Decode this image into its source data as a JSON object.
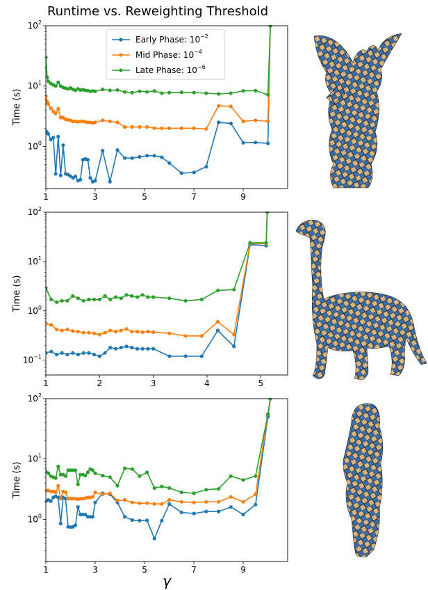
{
  "figure": {
    "title": "Runtime vs. Reweighting Threshold",
    "xlabel": "γ"
  },
  "colors": {
    "early": "#1f77b4",
    "mid": "#ff7f0e",
    "late": "#2ca02c",
    "mesh_light": "#d4b483",
    "mesh_dark": "#3b6ea8"
  },
  "legend": {
    "placement": "upper-center, top panel",
    "entries": [
      {
        "label": "Early Phase: 10",
        "exp": "−2",
        "color_key": "early"
      },
      {
        "label": "Mid Phase: 10",
        "exp": "−4",
        "color_key": "mid"
      },
      {
        "label": "Late Phase: 10",
        "exp": "−6",
        "color_key": "late"
      }
    ]
  },
  "chart_data": [
    {
      "type": "line",
      "ylabel": "Time (s)",
      "yscale": "log",
      "ylim": [
        0.2,
        100
      ],
      "yticks": [
        1,
        10,
        100
      ],
      "xlim": [
        1,
        10.8
      ],
      "xticks": [
        1,
        3,
        5,
        7,
        9
      ],
      "xtick_labels": [
        "1",
        "3",
        "5",
        "7",
        "9"
      ],
      "mesh": "angel statue",
      "series": [
        {
          "name": "Early Phase",
          "color_key": "early",
          "x": [
            1.0,
            1.05,
            1.1,
            1.2,
            1.3,
            1.4,
            1.5,
            1.6,
            1.7,
            1.8,
            1.9,
            2.0,
            2.1,
            2.2,
            2.3,
            2.4,
            2.5,
            2.6,
            2.7,
            2.8,
            2.9,
            3.0,
            3.3,
            3.6,
            3.9,
            4.2,
            4.5,
            4.8,
            5.1,
            5.4,
            5.7,
            6.0,
            6.5,
            7.0,
            7.5,
            8.0,
            8.5,
            9.0,
            9.5,
            10.0,
            10.1
          ],
          "y": [
            1.8,
            1.7,
            1.6,
            1.3,
            1.4,
            0.35,
            1.45,
            0.33,
            1.05,
            0.35,
            0.34,
            0.32,
            0.3,
            0.32,
            0.27,
            0.28,
            0.6,
            0.62,
            0.6,
            0.3,
            0.26,
            0.27,
            0.85,
            0.26,
            0.87,
            0.64,
            0.64,
            0.67,
            0.7,
            0.7,
            0.66,
            0.53,
            0.36,
            0.37,
            0.46,
            2.5,
            2.4,
            1.15,
            1.16,
            1.12,
            100
          ]
        },
        {
          "name": "Mid Phase",
          "color_key": "mid",
          "x": [
            1.0,
            1.05,
            1.1,
            1.2,
            1.3,
            1.4,
            1.5,
            1.6,
            1.7,
            1.8,
            1.9,
            2.0,
            2.1,
            2.2,
            2.3,
            2.4,
            2.5,
            2.6,
            2.7,
            2.8,
            2.9,
            3.0,
            3.3,
            3.6,
            3.9,
            4.2,
            4.5,
            4.8,
            5.1,
            5.4,
            5.7,
            6.0,
            6.5,
            7.0,
            7.5,
            8.0,
            8.5,
            9.0,
            9.5,
            10.0,
            10.1
          ],
          "y": [
            6.8,
            5.5,
            5.0,
            4.3,
            3.8,
            3.5,
            4.2,
            3.0,
            3.0,
            2.8,
            2.75,
            2.7,
            2.6,
            2.6,
            2.55,
            2.6,
            2.6,
            2.55,
            2.5,
            2.5,
            2.45,
            2.5,
            2.7,
            2.6,
            2.5,
            2.1,
            2.1,
            2.1,
            2.1,
            2.0,
            2.0,
            2.0,
            2.0,
            2.0,
            1.95,
            4.7,
            4.6,
            2.6,
            2.7,
            2.6,
            100
          ]
        },
        {
          "name": "Late Phase",
          "color_key": "late",
          "x": [
            1.0,
            1.05,
            1.1,
            1.2,
            1.3,
            1.4,
            1.5,
            1.6,
            1.7,
            1.8,
            1.9,
            2.0,
            2.1,
            2.2,
            2.3,
            2.4,
            2.5,
            2.6,
            2.7,
            2.8,
            2.9,
            3.0,
            3.3,
            3.6,
            3.9,
            4.2,
            4.5,
            4.8,
            5.1,
            5.4,
            5.7,
            6.0,
            6.5,
            7.0,
            7.5,
            8.0,
            8.5,
            9.0,
            9.5,
            10.0,
            10.1
          ],
          "y": [
            30,
            14,
            12,
            11,
            10.5,
            10,
            11.5,
            10,
            9.5,
            9.2,
            9.0,
            9.3,
            8.8,
            8.5,
            9.0,
            8.6,
            8.7,
            8.5,
            8.4,
            8.2,
            8.3,
            8.2,
            8.8,
            8.5,
            8.6,
            8.0,
            7.8,
            8.2,
            8.0,
            8.3,
            7.6,
            7.8,
            7.9,
            7.8,
            7.6,
            7.4,
            7.6,
            8.3,
            8.4,
            7.2,
            100
          ]
        }
      ]
    },
    {
      "type": "line",
      "ylabel": "Time (s)",
      "yscale": "log",
      "ylim": [
        0.05,
        100
      ],
      "yticks": [
        0.1,
        1,
        10,
        100
      ],
      "xlim": [
        1,
        5.5
      ],
      "xticks": [
        1,
        2,
        3,
        4,
        5
      ],
      "xtick_labels": [
        "1",
        "2",
        "3",
        "4",
        "5"
      ],
      "mesh": "dinosaur",
      "series": [
        {
          "name": "Early Phase",
          "color_key": "early",
          "x": [
            1.0,
            1.1,
            1.2,
            1.3,
            1.4,
            1.5,
            1.6,
            1.7,
            1.8,
            1.9,
            2.0,
            2.1,
            2.2,
            2.3,
            2.4,
            2.5,
            2.6,
            2.7,
            2.8,
            2.9,
            3.0,
            3.3,
            3.6,
            3.9,
            4.2,
            4.5,
            4.8,
            5.1,
            5.12
          ],
          "y": [
            0.14,
            0.15,
            0.13,
            0.14,
            0.13,
            0.14,
            0.13,
            0.14,
            0.14,
            0.13,
            0.12,
            0.14,
            0.18,
            0.17,
            0.18,
            0.19,
            0.18,
            0.17,
            0.17,
            0.17,
            0.17,
            0.12,
            0.12,
            0.12,
            0.4,
            0.19,
            22,
            21,
            100
          ]
        },
        {
          "name": "Mid Phase",
          "color_key": "mid",
          "x": [
            1.0,
            1.1,
            1.2,
            1.3,
            1.4,
            1.5,
            1.6,
            1.7,
            1.8,
            1.9,
            2.0,
            2.1,
            2.2,
            2.3,
            2.4,
            2.5,
            2.6,
            2.7,
            2.8,
            2.9,
            3.0,
            3.3,
            3.6,
            3.9,
            4.2,
            4.5,
            4.8,
            5.1,
            5.12
          ],
          "y": [
            0.55,
            0.52,
            0.42,
            0.4,
            0.42,
            0.39,
            0.38,
            0.36,
            0.36,
            0.35,
            0.33,
            0.36,
            0.4,
            0.38,
            0.4,
            0.43,
            0.38,
            0.38,
            0.37,
            0.38,
            0.37,
            0.35,
            0.31,
            0.31,
            0.6,
            0.33,
            23,
            23,
            100
          ]
        },
        {
          "name": "Late Phase",
          "color_key": "late",
          "x": [
            1.0,
            1.1,
            1.2,
            1.3,
            1.4,
            1.5,
            1.6,
            1.7,
            1.8,
            1.9,
            2.0,
            2.1,
            2.2,
            2.3,
            2.4,
            2.5,
            2.6,
            2.7,
            2.8,
            2.9,
            3.0,
            3.3,
            3.6,
            3.9,
            4.2,
            4.5,
            4.8,
            5.1,
            5.12
          ],
          "y": [
            2.9,
            1.7,
            1.5,
            1.6,
            1.6,
            2.0,
            1.8,
            1.6,
            1.7,
            1.7,
            1.7,
            2.0,
            1.7,
            1.9,
            1.8,
            2.1,
            2.0,
            1.9,
            2.1,
            1.9,
            1.9,
            1.8,
            1.6,
            1.7,
            2.6,
            2.7,
            24,
            24,
            100
          ]
        }
      ]
    },
    {
      "type": "line",
      "ylabel": "Time (s)",
      "yscale": "log",
      "ylim": [
        0.2,
        100
      ],
      "yticks": [
        1,
        10,
        100
      ],
      "xlim": [
        1,
        10.8
      ],
      "xticks": [
        1,
        3,
        5,
        7,
        9
      ],
      "xtick_labels": [
        "1",
        "3",
        "5",
        "7",
        "9"
      ],
      "mesh": "human figure",
      "series": [
        {
          "name": "Early Phase",
          "color_key": "early",
          "x": [
            1.0,
            1.1,
            1.2,
            1.3,
            1.4,
            1.5,
            1.6,
            1.7,
            1.8,
            1.9,
            2.0,
            2.1,
            2.2,
            2.3,
            2.4,
            2.5,
            2.6,
            2.7,
            2.8,
            2.9,
            3.0,
            3.3,
            3.6,
            3.9,
            4.2,
            4.5,
            4.8,
            5.1,
            5.4,
            5.7,
            6.0,
            6.5,
            7.0,
            7.5,
            8.0,
            8.5,
            9.0,
            9.5,
            10.0,
            10.1
          ],
          "y": [
            2.0,
            2.1,
            2.0,
            2.3,
            2.4,
            2.3,
            0.85,
            2.3,
            2.2,
            0.75,
            0.74,
            0.75,
            0.8,
            1.6,
            1.2,
            1.2,
            1.2,
            1.1,
            1.1,
            1.1,
            1.9,
            2.7,
            2.6,
            1.9,
            1.1,
            0.97,
            0.95,
            0.96,
            0.48,
            0.95,
            1.8,
            1.3,
            1.25,
            1.35,
            1.35,
            1.6,
            1.2,
            1.75,
            50,
            100
          ]
        },
        {
          "name": "Mid Phase",
          "color_key": "mid",
          "x": [
            1.0,
            1.1,
            1.2,
            1.3,
            1.4,
            1.5,
            1.6,
            1.7,
            1.8,
            1.9,
            2.0,
            2.1,
            2.2,
            2.3,
            2.4,
            2.5,
            2.6,
            2.7,
            2.8,
            2.9,
            3.0,
            3.3,
            3.6,
            3.9,
            4.2,
            4.5,
            4.8,
            5.1,
            5.4,
            5.7,
            6.0,
            6.5,
            7.0,
            7.5,
            8.0,
            8.5,
            9.0,
            9.5,
            10.0,
            10.1
          ],
          "y": [
            3.0,
            3.0,
            2.9,
            2.9,
            2.8,
            3.6,
            2.2,
            2.9,
            2.8,
            2.2,
            2.2,
            2.2,
            2.2,
            2.15,
            2.2,
            2.2,
            2.25,
            2.3,
            2.3,
            2.35,
            2.8,
            2.6,
            2.7,
            2.05,
            2.1,
            1.9,
            1.85,
            1.85,
            1.8,
            1.8,
            2.1,
            1.95,
            1.9,
            1.95,
            1.95,
            2.35,
            1.95,
            2.6,
            55,
            100
          ]
        },
        {
          "name": "Late Phase",
          "color_key": "late",
          "x": [
            1.0,
            1.1,
            1.2,
            1.3,
            1.4,
            1.5,
            1.6,
            1.7,
            1.8,
            1.9,
            2.0,
            2.1,
            2.2,
            2.3,
            2.4,
            2.5,
            2.6,
            2.7,
            2.8,
            2.9,
            3.0,
            3.3,
            3.6,
            3.9,
            4.2,
            4.5,
            4.8,
            5.1,
            5.4,
            5.7,
            6.0,
            6.5,
            7.0,
            7.5,
            8.0,
            8.5,
            9.0,
            9.5,
            10.0,
            10.1
          ],
          "y": [
            6.2,
            5.8,
            5.2,
            5.0,
            4.8,
            7.5,
            5.5,
            5.5,
            5.2,
            6.5,
            6.5,
            6.5,
            6.5,
            3.8,
            5.5,
            5.5,
            5.3,
            6.0,
            6.8,
            6.5,
            5.8,
            5.3,
            5.0,
            3.6,
            7.0,
            6.8,
            5.2,
            6.0,
            3.3,
            3.5,
            3.3,
            2.8,
            2.7,
            3.1,
            3.2,
            5.2,
            4.5,
            5.2,
            55,
            100
          ]
        }
      ]
    }
  ]
}
